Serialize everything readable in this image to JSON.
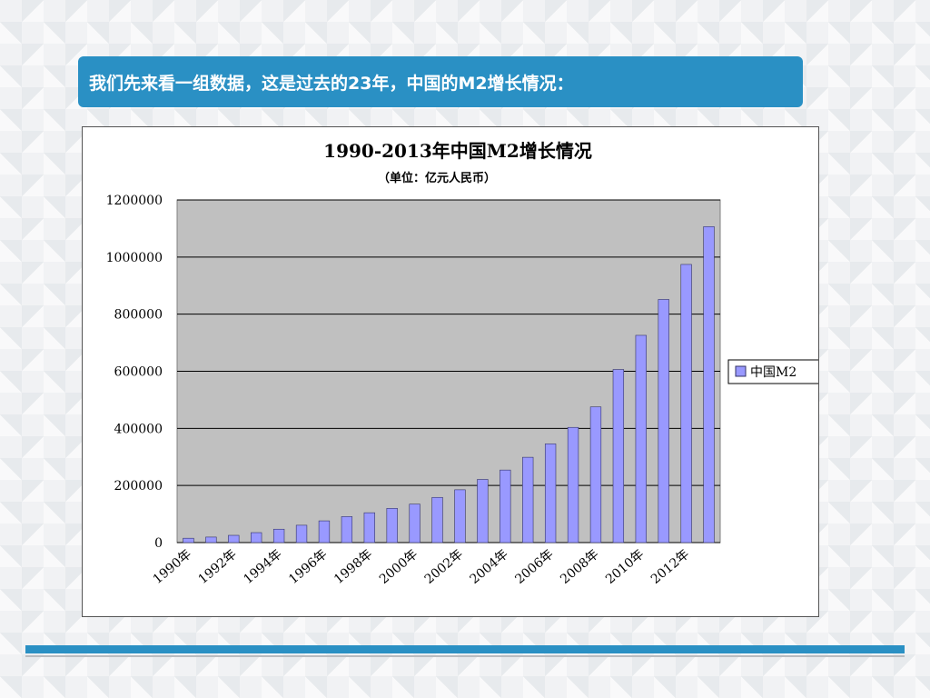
{
  "banner": {
    "text": "我们先来看一组数据，这是过去的23年，中国的M2增长情况："
  },
  "colors": {
    "banner": "#2a90c4",
    "plot_bg": "#c0c0c0",
    "bar_fill": "#9999ff",
    "bar_stroke": "#333366"
  },
  "chart_data": {
    "type": "bar",
    "title": "1990-2013年中国M2增长情况",
    "subtitle": "（单位：亿元人民币）",
    "xlabel": "",
    "ylabel": "",
    "ylim": [
      0,
      1200000
    ],
    "yticks": [
      0,
      200000,
      400000,
      600000,
      800000,
      1000000,
      1200000
    ],
    "x_tick_labels": [
      "1990年",
      "1992年",
      "1994年",
      "1996年",
      "1998年",
      "2000年",
      "2002年",
      "2004年",
      "2006年",
      "2008年",
      "2010年",
      "2012年"
    ],
    "categories": [
      "1990",
      "1991",
      "1992",
      "1993",
      "1994",
      "1995",
      "1996",
      "1997",
      "1998",
      "1999",
      "2000",
      "2001",
      "2002",
      "2003",
      "2004",
      "2005",
      "2006",
      "2007",
      "2008",
      "2009",
      "2010",
      "2011",
      "2012",
      "2013"
    ],
    "series": [
      {
        "name": "中国M2",
        "values": [
          15293,
          19349,
          25402,
          34880,
          46924,
          60751,
          76095,
          90995,
          104499,
          119898,
          134610,
          158302,
          185007,
          221223,
          254107,
          298756,
          345604,
          403442,
          475167,
          606225,
          725852,
          851591,
          974149,
          1106525
        ]
      }
    ],
    "grid": true,
    "legend_position": "right"
  }
}
